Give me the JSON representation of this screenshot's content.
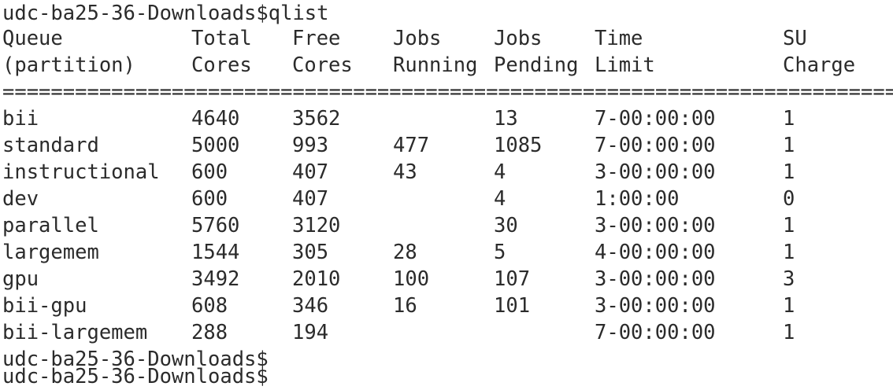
{
  "prompt_top": "udc-ba25-36-Downloads$qlist",
  "header": {
    "row1": [
      "Queue",
      "Total",
      "Free",
      "Jobs",
      "Jobs",
      "Time",
      "SU"
    ],
    "row2": [
      "(partition)",
      "Cores",
      "Cores",
      "Running",
      "Pending",
      "Limit",
      "Charge"
    ]
  },
  "separator": "=======================================================================================",
  "rows": [
    [
      "bii",
      "4640",
      "3562",
      "",
      "13",
      "7-00:00:00",
      "1"
    ],
    [
      "standard",
      "5000",
      "993",
      "477",
      "1085",
      "7-00:00:00",
      "1"
    ],
    [
      "instructional",
      "600",
      "407",
      "43",
      "4",
      "3-00:00:00",
      "1"
    ],
    [
      "dev",
      "600",
      "407",
      "",
      "4",
      "1:00:00",
      "0"
    ],
    [
      "parallel",
      "5760",
      "3120",
      "",
      "30",
      "3-00:00:00",
      "1"
    ],
    [
      "largemem",
      "1544",
      "305",
      "28",
      "5",
      "4-00:00:00",
      "1"
    ],
    [
      "gpu",
      "3492",
      "2010",
      "100",
      "107",
      "3-00:00:00",
      "3"
    ],
    [
      "bii-gpu",
      "608",
      "346",
      "16",
      "101",
      "3-00:00:00",
      "1"
    ],
    [
      "bii-largemem",
      "288",
      "194",
      "",
      "",
      "7-00:00:00",
      "1"
    ]
  ],
  "prompt_bottom": "udc-ba25-36-Downloads$",
  "prompt_cutoff": "udc-ba25-36-Downloads$"
}
